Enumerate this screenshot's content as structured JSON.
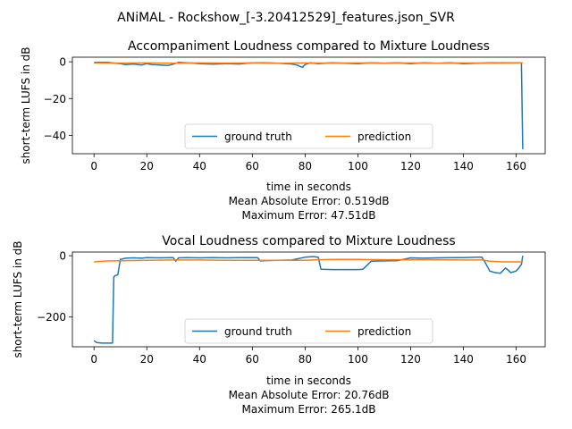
{
  "figure_title": "ANiMAL - Rockshow_[-3.20412529]_features.json_SVR",
  "colors": {
    "ground_truth": "#1f77b4",
    "prediction": "#ff7f0e",
    "axes": "#000000"
  },
  "chart_data": [
    {
      "type": "line",
      "title": "Accompaniment Loudness compared to Mixture Loudness",
      "xlabel": "time in seconds",
      "ylabel": "short-term LUFS in dB",
      "xlim": [
        -8.2,
        171.0
      ],
      "ylim": [
        -50,
        2.5
      ],
      "xticks": [
        0,
        20,
        40,
        60,
        80,
        100,
        120,
        140,
        160
      ],
      "yticks": [
        -40,
        -20,
        0
      ],
      "legend": {
        "placement": "lower-center",
        "columns": 2
      },
      "grid": false,
      "notes": [
        "Mean Absolute Error: 0.519dB",
        "Maximum Error: 47.51dB"
      ],
      "series": [
        {
          "name": "ground truth",
          "color": "#1f77b4",
          "x": [
            0,
            5,
            10,
            12,
            15,
            18,
            20,
            22,
            25,
            28,
            30,
            32,
            35,
            38,
            40,
            45,
            50,
            55,
            58,
            60,
            65,
            70,
            75,
            77,
            78,
            79,
            80,
            82,
            85,
            90,
            95,
            100,
            105,
            110,
            115,
            120,
            125,
            130,
            135,
            140,
            145,
            150,
            155,
            160,
            162,
            162.5
          ],
          "y": [
            -0.3,
            -0.3,
            -1.0,
            -1.5,
            -1.2,
            -1.8,
            -1.0,
            -1.5,
            -1.8,
            -2.0,
            -1.3,
            -0.3,
            -0.5,
            -0.8,
            -1.0,
            -1.3,
            -1.0,
            -1.2,
            -0.8,
            -0.5,
            -0.5,
            -0.8,
            -1.2,
            -1.8,
            -2.5,
            -3.0,
            -1.5,
            -0.5,
            -1.0,
            -0.5,
            -0.8,
            -1.0,
            -0.5,
            -0.8,
            -0.5,
            -1.0,
            -0.5,
            -0.8,
            -0.5,
            -1.0,
            -0.8,
            -0.5,
            -0.5,
            -0.5,
            -0.5,
            -47.5
          ]
        },
        {
          "name": "prediction",
          "color": "#ff7f0e",
          "x": [
            0,
            10,
            20,
            30,
            40,
            50,
            60,
            70,
            80,
            90,
            100,
            110,
            120,
            130,
            140,
            150,
            160,
            162.5
          ],
          "y": [
            -0.6,
            -0.7,
            -0.6,
            -0.8,
            -0.6,
            -0.7,
            -0.6,
            -0.8,
            -0.6,
            -0.7,
            -0.6,
            -0.7,
            -0.6,
            -0.8,
            -0.6,
            -0.7,
            -0.6,
            -0.6
          ]
        }
      ]
    },
    {
      "type": "line",
      "title": "Vocal Loudness compared to Mixture Loudness",
      "xlabel": "time in seconds",
      "ylabel": "short-term LUFS in dB",
      "xlim": [
        -8.2,
        171.0
      ],
      "ylim": [
        -297,
        12
      ],
      "xticks": [
        0,
        20,
        40,
        60,
        80,
        100,
        120,
        140,
        160
      ],
      "yticks": [
        -200,
        0
      ],
      "legend": {
        "placement": "lower-center",
        "columns": 2
      },
      "grid": false,
      "notes": [
        "Mean Absolute Error: 20.76dB",
        "Maximum Error: 265.1dB"
      ],
      "series": [
        {
          "name": "ground truth",
          "color": "#1f77b4",
          "x": [
            0,
            1,
            3,
            5,
            6,
            6.5,
            7,
            7.5,
            8,
            9,
            10,
            12,
            15,
            18,
            20,
            25,
            30,
            31,
            32,
            35,
            40,
            45,
            50,
            55,
            60,
            62,
            63,
            65,
            70,
            75,
            80,
            83,
            85,
            86,
            90,
            95,
            100,
            102,
            105,
            110,
            115,
            120,
            125,
            130,
            140,
            145,
            147,
            148,
            150,
            152,
            154,
            156,
            158,
            160,
            161,
            162,
            162.5
          ],
          "y": [
            -277,
            -283,
            -285,
            -285,
            -285,
            -285,
            -285,
            -70,
            -65,
            -62,
            -12,
            -8,
            -7,
            -8,
            -6,
            -7,
            -6,
            -18,
            -7,
            -6,
            -7,
            -6,
            -7,
            -6,
            -6,
            -6,
            -17,
            -16,
            -15,
            -14,
            -5,
            -3,
            -5,
            -44,
            -45,
            -45,
            -45,
            -44,
            -18,
            -17,
            -16,
            -7,
            -8,
            -7,
            -6,
            -5,
            -5,
            -18,
            -50,
            -55,
            -57,
            -40,
            -55,
            -50,
            -40,
            -28,
            0
          ]
        },
        {
          "name": "prediction",
          "color": "#ff7f0e",
          "x": [
            0,
            3,
            6,
            8,
            12,
            20,
            30,
            40,
            50,
            60,
            70,
            80,
            85,
            90,
            100,
            110,
            120,
            130,
            140,
            147,
            150,
            155,
            160,
            162.5
          ],
          "y": [
            -20,
            -18,
            -17,
            -17,
            -16,
            -15,
            -14,
            -14,
            -15,
            -15,
            -15,
            -15,
            -13,
            -12,
            -12,
            -13,
            -13,
            -13,
            -14,
            -14,
            -18,
            -20,
            -20,
            -20
          ]
        }
      ]
    }
  ]
}
